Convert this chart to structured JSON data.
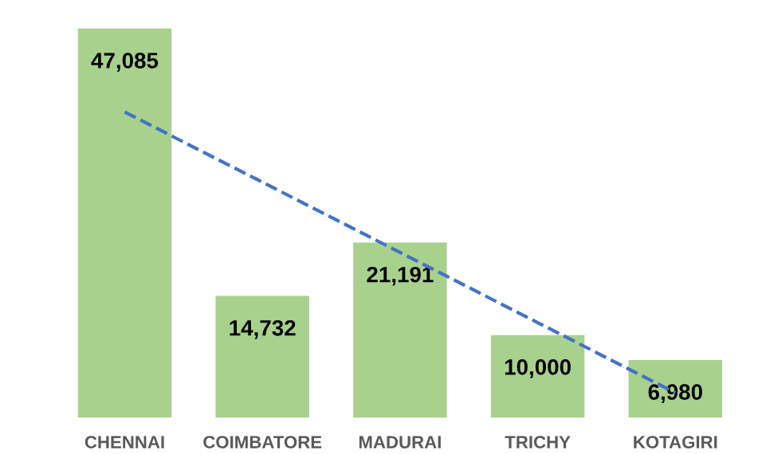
{
  "chart_data": {
    "type": "bar",
    "categories": [
      "CHENNAI",
      "COIMBATORE",
      "MADURAI",
      "TRICHY",
      "KOTAGIRI"
    ],
    "grid": false,
    "legend": false,
    "series": [
      {
        "color": "#a9d18e",
        "values": [
          47085,
          14732,
          21191,
          10000,
          6980
        ],
        "value_labels": [
          "47,085",
          "14,732",
          "21,191",
          "10,000",
          "6,980"
        ]
      },
      {
        "type": "line",
        "color": "#4472c4",
        "line_style": "dashed",
        "values": [
          36986,
          28492,
          19998,
          11503,
          3009
        ]
      }
    ]
  }
}
